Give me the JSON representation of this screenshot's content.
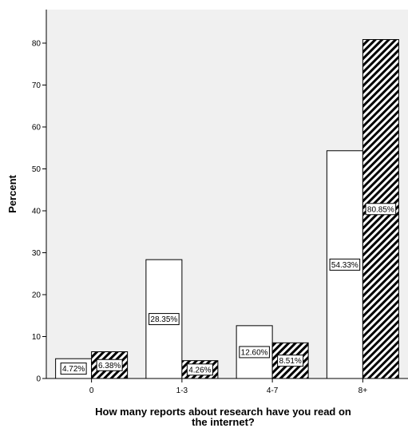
{
  "chart_data": {
    "type": "bar",
    "categories": [
      "0",
      "1-3",
      "4-7",
      "8+"
    ],
    "series": [
      {
        "values": [
          4.72,
          28.35,
          12.6,
          54.33
        ],
        "labels": [
          "4.72%",
          "28.35%",
          "12.60%",
          "54.33%"
        ],
        "fill": "white"
      },
      {
        "values": [
          6.38,
          4.26,
          8.51,
          80.85
        ],
        "labels": [
          "6.38%",
          "4.26%",
          "8.51%",
          "80.85%"
        ],
        "fill": "diagonal-hatch"
      }
    ],
    "xlabel_lines": [
      "How many reports about research have you read on",
      "the internet?"
    ],
    "ylabel": "Percent",
    "yticks": [
      0,
      10,
      20,
      30,
      40,
      50,
      60,
      70,
      80
    ],
    "ylim": [
      0,
      88
    ],
    "grid": false,
    "legend": "none",
    "colors": {
      "plot_background": "#f0f0f0",
      "bar_stroke": "#000000",
      "bar_fill": "#ffffff",
      "hatch": "#000000"
    }
  }
}
